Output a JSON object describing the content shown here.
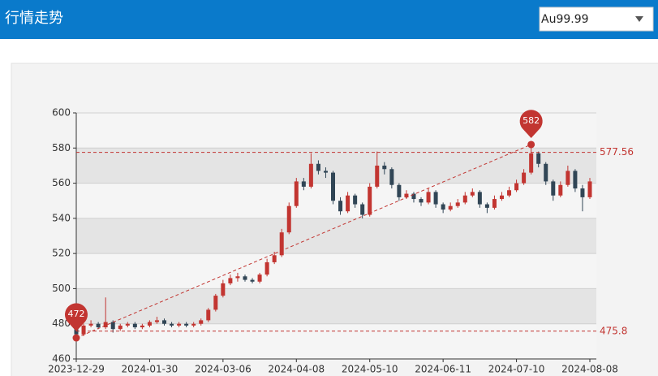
{
  "header": {
    "title": "行情走势",
    "selector": "Au99.99"
  },
  "chart_data": {
    "type": "candlestick",
    "categories": [
      "2023-12-29",
      null,
      null,
      null,
      null,
      null,
      null,
      null,
      null,
      null,
      "2024-01-30",
      null,
      null,
      null,
      null,
      null,
      null,
      null,
      null,
      null,
      "2024-03-06",
      null,
      null,
      null,
      null,
      null,
      null,
      null,
      null,
      null,
      "2024-04-08",
      null,
      null,
      null,
      null,
      null,
      null,
      null,
      null,
      null,
      "2024-05-10",
      null,
      null,
      null,
      null,
      null,
      null,
      null,
      null,
      null,
      "2024-06-11",
      null,
      null,
      null,
      null,
      null,
      null,
      null,
      null,
      null,
      "2024-07-10",
      null,
      null,
      null,
      null,
      null,
      null,
      null,
      null,
      null,
      "2024-08-08"
    ],
    "series": [
      {
        "up_color": "#c23531",
        "down_color": "#314656",
        "values": [
          [
            477,
            474,
            472,
            478
          ],
          [
            474,
            479,
            473,
            480
          ],
          [
            479,
            480,
            478,
            482
          ],
          [
            480,
            478,
            477,
            481
          ],
          [
            478,
            481,
            477,
            495
          ],
          [
            481,
            477,
            475,
            482
          ],
          [
            477,
            479,
            476,
            480
          ],
          [
            479,
            480,
            478,
            481
          ],
          [
            480,
            478,
            477,
            481
          ],
          [
            478,
            479,
            477,
            480
          ],
          [
            479,
            481,
            478,
            482
          ],
          [
            481,
            482,
            480,
            484
          ],
          [
            482,
            480,
            479,
            483
          ],
          [
            480,
            479,
            478,
            481
          ],
          [
            479,
            480,
            478,
            481
          ],
          [
            480,
            479,
            478,
            481
          ],
          [
            479,
            480,
            478,
            481
          ],
          [
            480,
            482,
            479,
            483
          ],
          [
            482,
            488,
            481,
            489
          ],
          [
            488,
            496,
            487,
            497
          ],
          [
            496,
            503,
            495,
            505
          ],
          [
            503,
            506,
            502,
            508
          ],
          [
            506,
            507,
            504,
            509
          ],
          [
            507,
            505,
            504,
            508
          ],
          [
            505,
            504,
            503,
            506
          ],
          [
            504,
            508,
            503,
            509
          ],
          [
            508,
            515,
            507,
            517
          ],
          [
            515,
            519,
            514,
            521
          ],
          [
            519,
            532,
            518,
            534
          ],
          [
            532,
            547,
            531,
            549
          ],
          [
            547,
            561,
            546,
            563
          ],
          [
            561,
            558,
            556,
            563
          ],
          [
            558,
            571,
            557,
            577
          ],
          [
            571,
            567,
            565,
            573
          ],
          [
            567,
            566,
            563,
            569
          ],
          [
            566,
            550,
            548,
            567
          ],
          [
            550,
            544,
            542,
            552
          ],
          [
            544,
            553,
            543,
            555
          ],
          [
            553,
            548,
            546,
            554
          ],
          [
            548,
            542,
            540,
            549
          ],
          [
            542,
            558,
            541,
            560
          ],
          [
            558,
            570,
            557,
            578
          ],
          [
            570,
            568,
            565,
            572
          ],
          [
            568,
            559,
            557,
            569
          ],
          [
            559,
            552,
            550,
            560
          ],
          [
            552,
            554,
            551,
            556
          ],
          [
            554,
            551,
            549,
            555
          ],
          [
            551,
            549,
            547,
            552
          ],
          [
            549,
            555,
            548,
            557
          ],
          [
            555,
            548,
            546,
            556
          ],
          [
            548,
            545,
            543,
            549
          ],
          [
            545,
            547,
            544,
            549
          ],
          [
            547,
            549,
            546,
            551
          ],
          [
            549,
            553,
            548,
            555
          ],
          [
            553,
            555,
            552,
            557
          ],
          [
            555,
            548,
            546,
            556
          ],
          [
            548,
            546,
            543,
            549
          ],
          [
            546,
            551,
            545,
            553
          ],
          [
            551,
            553,
            550,
            555
          ],
          [
            553,
            556,
            552,
            558
          ],
          [
            556,
            560,
            555,
            562
          ],
          [
            560,
            566,
            559,
            568
          ],
          [
            566,
            577,
            565,
            582
          ],
          [
            577,
            571,
            569,
            578
          ],
          [
            571,
            561,
            559,
            572
          ],
          [
            561,
            553,
            550,
            562
          ],
          [
            553,
            559,
            552,
            561
          ],
          [
            559,
            567,
            558,
            570
          ],
          [
            567,
            557,
            555,
            568
          ],
          [
            557,
            552,
            544,
            559
          ],
          [
            552,
            561,
            551,
            563
          ]
        ]
      }
    ],
    "ylim": [
      460,
      600
    ],
    "yticks": [
      460,
      480,
      500,
      520,
      540,
      560,
      580,
      600
    ],
    "mark_points": [
      472,
      582
    ],
    "mark_lines": [
      577.56,
      475.8
    ],
    "mark_color": "#c23531"
  }
}
